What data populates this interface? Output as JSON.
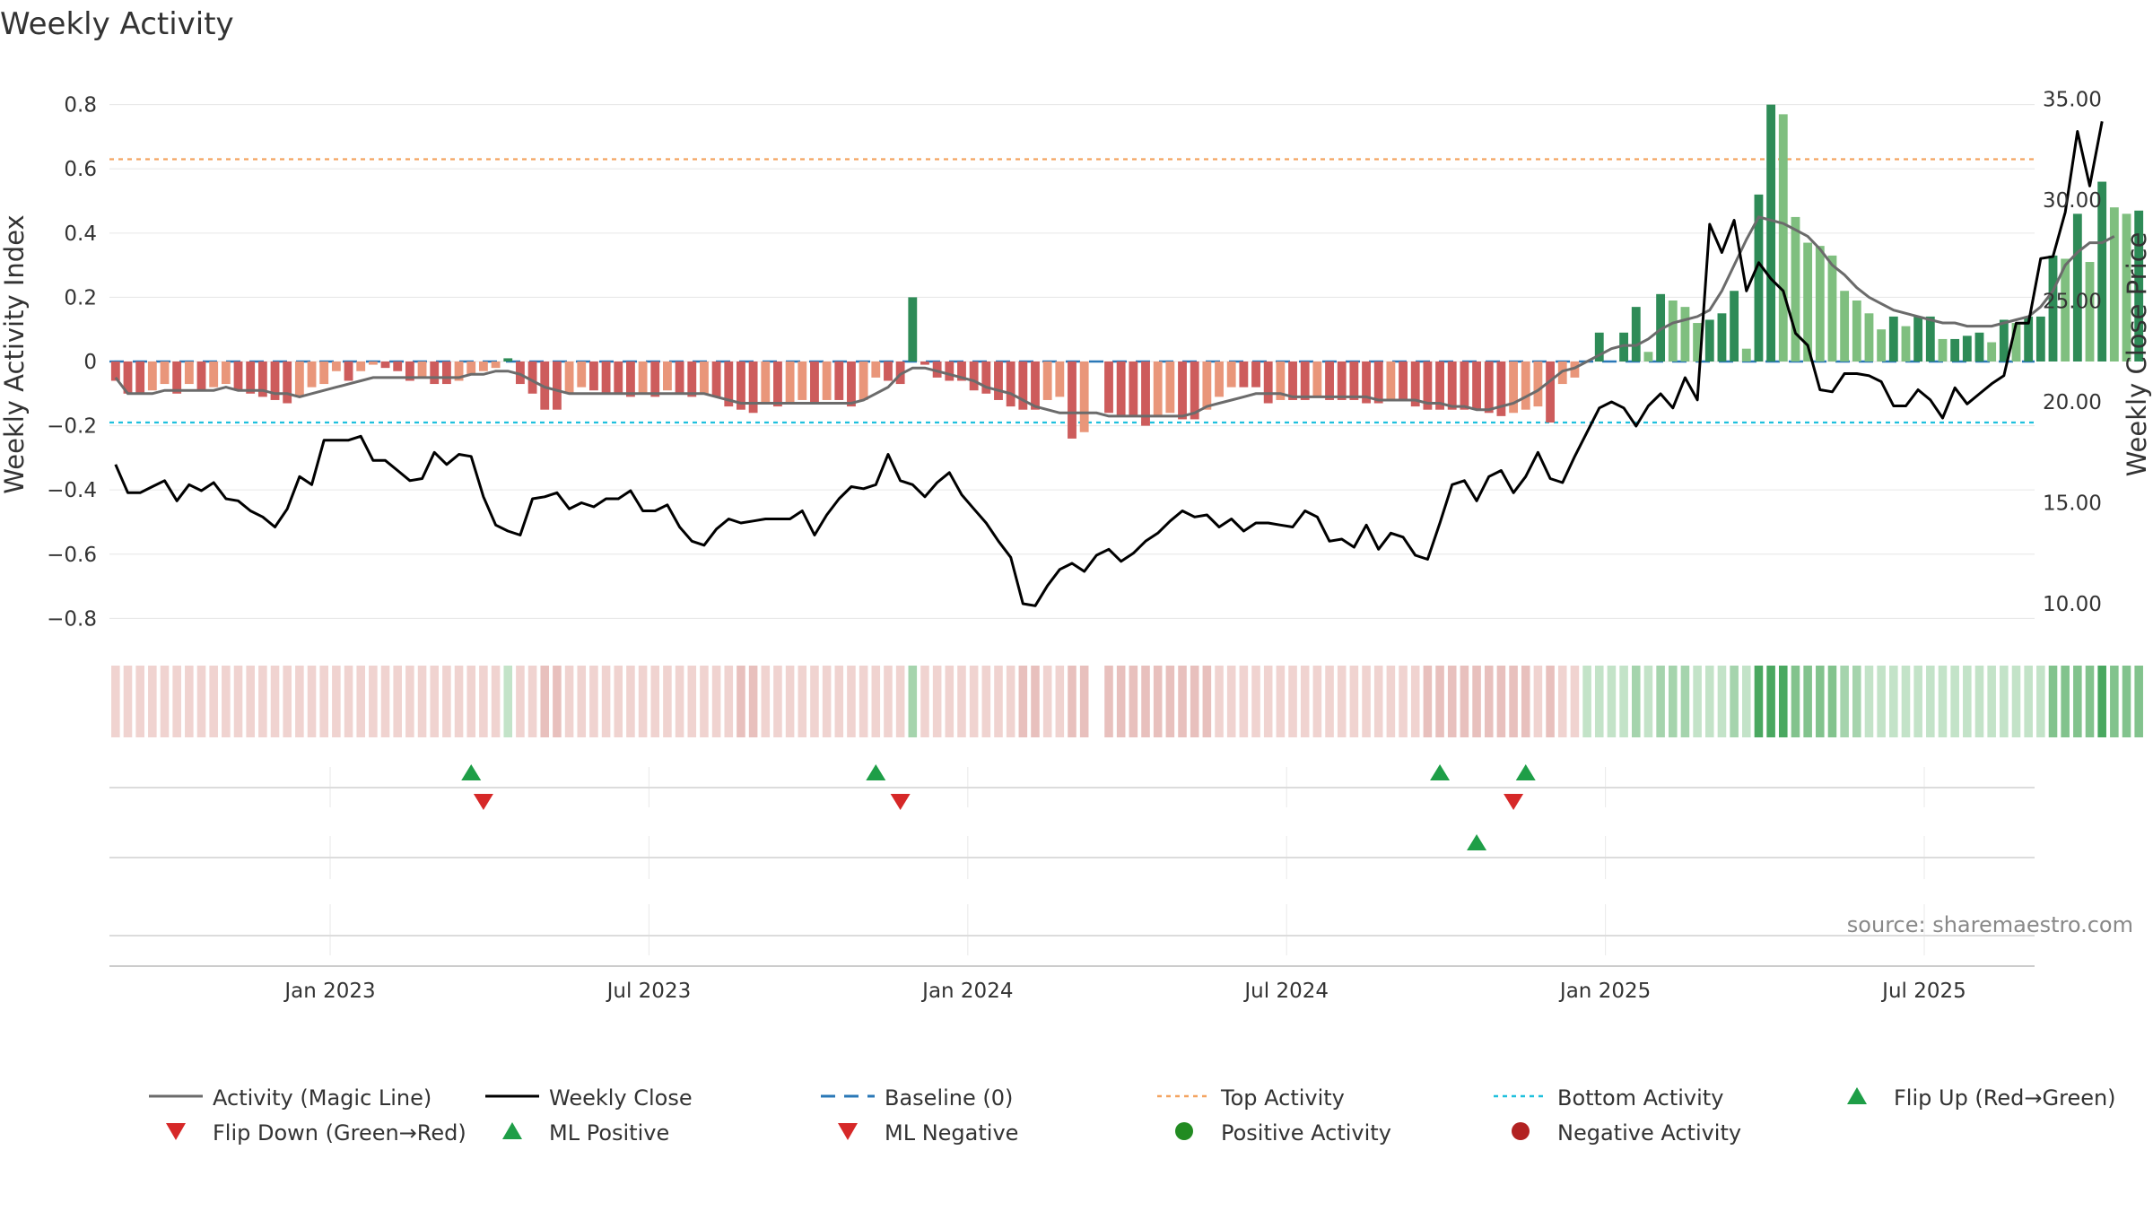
{
  "chart_data": {
    "type": "bar",
    "title": "Weekly Activity",
    "ylabel": "Weekly Activity Index",
    "y2label": "Weekly Close Price",
    "ylim": [
      -0.88,
      0.88
    ],
    "y2lim": [
      8.0,
      36.0
    ],
    "y_ticks": [
      {
        "value": 0.8,
        "label": "0.8"
      },
      {
        "value": 0.6,
        "label": "0.6"
      },
      {
        "value": 0.4,
        "label": "0.4"
      },
      {
        "value": 0.2,
        "label": "0.2"
      },
      {
        "value": 0,
        "label": "0"
      },
      {
        "value": -0.2,
        "label": "−0.2"
      },
      {
        "value": -0.4,
        "label": "−0.4"
      },
      {
        "value": -0.6,
        "label": "−0.6"
      },
      {
        "value": -0.8,
        "label": "−0.8"
      }
    ],
    "y2_ticks": [
      {
        "value": 35,
        "label": "35.00"
      },
      {
        "value": 30,
        "label": "30.00"
      },
      {
        "value": 25,
        "label": "25.00"
      },
      {
        "value": 20,
        "label": "20.00"
      },
      {
        "value": 15,
        "label": "15.00"
      },
      {
        "value": 10,
        "label": "10.00"
      }
    ],
    "x_ticks": [
      {
        "week": 18,
        "label": "Jan 2023"
      },
      {
        "week": 44,
        "label": "Jul 2023"
      },
      {
        "week": 70,
        "label": "Jan 2024"
      },
      {
        "week": 96,
        "label": "Jul 2024"
      },
      {
        "week": 122,
        "label": "Jan 2025"
      },
      {
        "week": 148,
        "label": "Jul 2025"
      }
    ],
    "weeks_count": 157,
    "thresholds": {
      "top": 0.63,
      "bottom": -0.19,
      "baseline": 0
    },
    "series": [
      {
        "name": "Weekly Activity Index",
        "kind": "bar",
        "values": [
          -0.06,
          -0.1,
          -0.1,
          -0.09,
          -0.07,
          -0.1,
          -0.07,
          -0.09,
          -0.08,
          -0.07,
          -0.09,
          -0.1,
          -0.11,
          -0.12,
          -0.13,
          -0.11,
          -0.08,
          -0.07,
          -0.03,
          -0.06,
          -0.03,
          -0.01,
          -0.02,
          -0.03,
          -0.06,
          -0.05,
          -0.07,
          -0.07,
          -0.06,
          -0.04,
          -0.03,
          -0.02,
          0.01,
          -0.07,
          -0.1,
          -0.15,
          -0.15,
          -0.1,
          -0.08,
          -0.09,
          -0.1,
          -0.1,
          -0.11,
          -0.1,
          -0.11,
          -0.09,
          -0.1,
          -0.11,
          -0.1,
          -0.11,
          -0.14,
          -0.15,
          -0.16,
          -0.13,
          -0.14,
          -0.13,
          -0.12,
          -0.13,
          -0.12,
          -0.12,
          -0.14,
          -0.12,
          -0.05,
          -0.06,
          -0.07,
          0.2,
          -0.01,
          -0.05,
          -0.06,
          -0.06,
          -0.09,
          -0.1,
          -0.12,
          -0.14,
          -0.15,
          -0.15,
          -0.12,
          -0.11,
          -0.24,
          -0.22,
          0,
          -0.16,
          -0.17,
          -0.17,
          -0.2,
          -0.17,
          -0.16,
          -0.18,
          -0.18,
          -0.15,
          -0.11,
          -0.08,
          -0.08,
          -0.08,
          -0.13,
          -0.12,
          -0.12,
          -0.12,
          -0.11,
          -0.12,
          -0.12,
          -0.12,
          -0.13,
          -0.13,
          -0.12,
          -0.12,
          -0.14,
          -0.15,
          -0.15,
          -0.15,
          -0.15,
          -0.15,
          -0.16,
          -0.17,
          -0.16,
          -0.15,
          -0.14,
          -0.19,
          -0.07,
          -0.05,
          0,
          0.09,
          0,
          0.09,
          0.17,
          0.03,
          0.21,
          0.19,
          0.17,
          0.12,
          0.13,
          0.15,
          0.22,
          0.04,
          0.52,
          0.8,
          0.77,
          0.45,
          0.37,
          0.36,
          0.33,
          0.22,
          0.19,
          0.15,
          0.1,
          0.14,
          0.11,
          0.14,
          0.14,
          0.07,
          0.07,
          0.08,
          0.09,
          0.06,
          0.13,
          0.12,
          0.14,
          0.14,
          0.33,
          0.32,
          0.46,
          0.31,
          0.56,
          0.48,
          0.46,
          0.47
        ],
        "colors": {
          "positive_strong": "#2e8b57",
          "positive_light": "#7fbf7f",
          "negative_strong": "#cd5c5c",
          "negative_light": "#e9967a"
        }
      },
      {
        "name": "Activity (Magic Line)",
        "kind": "line",
        "axis": "left",
        "color": "#6b6b6b",
        "values": [
          -0.05,
          -0.1,
          -0.1,
          -0.1,
          -0.09,
          -0.09,
          -0.09,
          -0.09,
          -0.09,
          -0.08,
          -0.09,
          -0.09,
          -0.09,
          -0.1,
          -0.1,
          -0.11,
          -0.1,
          -0.09,
          -0.08,
          -0.07,
          -0.06,
          -0.05,
          -0.05,
          -0.05,
          -0.05,
          -0.05,
          -0.05,
          -0.05,
          -0.05,
          -0.04,
          -0.04,
          -0.03,
          -0.03,
          -0.04,
          -0.06,
          -0.08,
          -0.09,
          -0.1,
          -0.1,
          -0.1,
          -0.1,
          -0.1,
          -0.1,
          -0.1,
          -0.1,
          -0.1,
          -0.1,
          -0.1,
          -0.1,
          -0.11,
          -0.12,
          -0.13,
          -0.13,
          -0.13,
          -0.13,
          -0.13,
          -0.13,
          -0.13,
          -0.13,
          -0.13,
          -0.13,
          -0.12,
          -0.1,
          -0.08,
          -0.04,
          -0.02,
          -0.02,
          -0.03,
          -0.04,
          -0.05,
          -0.06,
          -0.08,
          -0.09,
          -0.1,
          -0.12,
          -0.14,
          -0.15,
          -0.16,
          -0.16,
          -0.16,
          -0.16,
          -0.17,
          -0.17,
          -0.17,
          -0.17,
          -0.17,
          -0.17,
          -0.17,
          -0.16,
          -0.14,
          -0.13,
          -0.12,
          -0.11,
          -0.1,
          -0.1,
          -0.1,
          -0.11,
          -0.11,
          -0.11,
          -0.11,
          -0.11,
          -0.11,
          -0.11,
          -0.12,
          -0.12,
          -0.12,
          -0.12,
          -0.13,
          -0.13,
          -0.14,
          -0.14,
          -0.15,
          -0.15,
          -0.14,
          -0.13,
          -0.11,
          -0.09,
          -0.06,
          -0.03,
          -0.02,
          0,
          0.02,
          0.04,
          0.05,
          0.05,
          0.07,
          0.1,
          0.12,
          0.13,
          0.14,
          0.16,
          0.22,
          0.3,
          0.38,
          0.45,
          0.44,
          0.43,
          0.41,
          0.39,
          0.35,
          0.3,
          0.27,
          0.23,
          0.2,
          0.18,
          0.16,
          0.15,
          0.14,
          0.13,
          0.12,
          0.12,
          0.11,
          0.11,
          0.11,
          0.12,
          0.13,
          0.14,
          0.17,
          0.22,
          0.3,
          0.34,
          0.37,
          0.37,
          0.39
        ]
      },
      {
        "name": "Weekly Close",
        "kind": "line",
        "axis": "right",
        "color": "#000000",
        "values": [
          16.9,
          15.5,
          15.5,
          15.8,
          16.1,
          15.1,
          15.9,
          15.6,
          16.0,
          15.2,
          15.1,
          14.6,
          14.3,
          13.8,
          14.7,
          16.3,
          15.9,
          18.1,
          18.1,
          18.1,
          18.3,
          17.1,
          17.1,
          16.6,
          16.1,
          16.2,
          17.5,
          16.9,
          17.4,
          17.3,
          15.3,
          13.9,
          13.6,
          13.4,
          15.2,
          15.3,
          15.5,
          14.7,
          15.0,
          14.8,
          15.2,
          15.2,
          15.6,
          14.6,
          14.6,
          14.9,
          13.8,
          13.1,
          12.9,
          13.7,
          14.2,
          14.0,
          14.1,
          14.2,
          14.2,
          14.2,
          14.6,
          13.4,
          14.4,
          15.2,
          15.8,
          15.7,
          15.9,
          17.4,
          16.1,
          15.9,
          15.3,
          16.0,
          16.5,
          15.4,
          14.7,
          14.0,
          13.1,
          12.3,
          10.0,
          9.9,
          10.9,
          11.7,
          12.0,
          11.6,
          12.4,
          12.7,
          12.1,
          12.5,
          13.1,
          13.5,
          14.1,
          14.6,
          14.3,
          14.4,
          13.8,
          14.2,
          13.6,
          14.0,
          14.0,
          13.9,
          13.8,
          14.6,
          14.3,
          13.1,
          13.2,
          12.8,
          13.9,
          12.7,
          13.5,
          13.3,
          12.4,
          12.2,
          14.0,
          15.9,
          16.1,
          15.1,
          16.3,
          16.6,
          15.5,
          16.3,
          17.5,
          16.2,
          16.0,
          17.3,
          18.5,
          19.7,
          20.0,
          19.7,
          18.8,
          19.8,
          20.4,
          19.7,
          21.2,
          20.1,
          28.8,
          27.4,
          29.0,
          25.5,
          26.9,
          26.1,
          25.5,
          23.4,
          22.8,
          20.6,
          20.5,
          21.4,
          21.4,
          21.3,
          21.0,
          19.8,
          19.8,
          20.6,
          20.1,
          19.2,
          20.7,
          19.9,
          20.4,
          20.9,
          21.3,
          23.9,
          23.9,
          27.1,
          27.2,
          29.4,
          33.4,
          30.7,
          33.9
        ]
      }
    ],
    "strip": {
      "label": "Activity intensity strip"
    },
    "events": {
      "flip_up_weeks": [
        29,
        62,
        108,
        115
      ],
      "flip_down_weeks": [
        30,
        64,
        114
      ],
      "ml_positive_weeks": [
        111
      ],
      "ml_negative_weeks": [],
      "positive_activity_weeks": [],
      "negative_activity_weeks": []
    },
    "legend": [
      {
        "label": "Activity (Magic Line)",
        "marker": "line",
        "color": "#6b6b6b"
      },
      {
        "label": "Weekly Close",
        "marker": "line",
        "color": "#000000"
      },
      {
        "label": "Baseline (0)",
        "marker": "dash",
        "color": "#2a78b7"
      },
      {
        "label": "Top Activity",
        "marker": "dot-line",
        "color": "#f4a460"
      },
      {
        "label": "Bottom Activity",
        "marker": "dot-line",
        "color": "#1fc0dd"
      },
      {
        "label": "Flip Up (Red→Green)",
        "marker": "triangle-up",
        "color": "#1e9e47"
      },
      {
        "label": "Flip Down (Green→Red)",
        "marker": "triangle-down",
        "color": "#d62828"
      },
      {
        "label": "ML Positive",
        "marker": "triangle-up",
        "color": "#1e9e47"
      },
      {
        "label": "ML Negative",
        "marker": "triangle-down",
        "color": "#d62828"
      },
      {
        "label": "Positive Activity",
        "marker": "circle",
        "color": "#228b22"
      },
      {
        "label": "Negative Activity",
        "marker": "circle",
        "color": "#b22222"
      }
    ],
    "legend_position": "bottom",
    "source": "source: sharemaestro.com"
  }
}
